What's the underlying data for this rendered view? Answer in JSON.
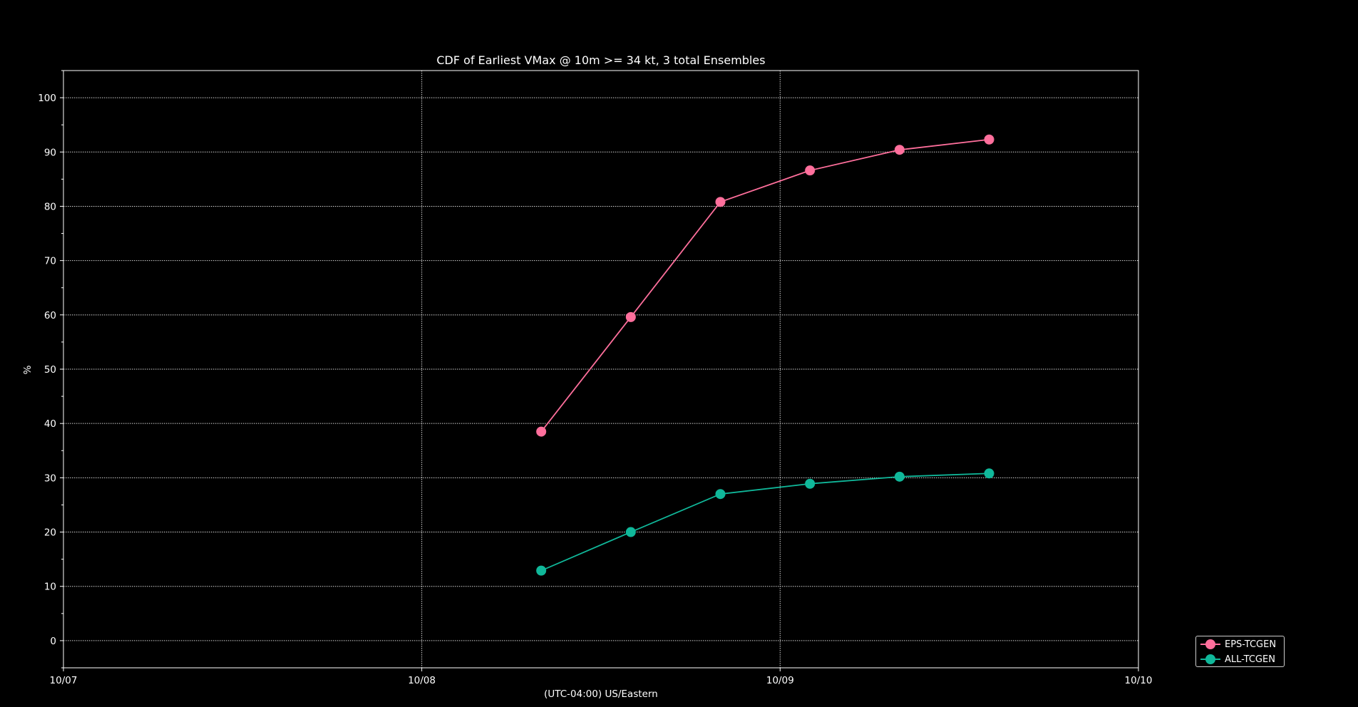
{
  "chart_data": {
    "type": "line",
    "title": "CDF of Earliest VMax @ 10m >= 34 kt, 3 total Ensembles",
    "xlabel": "(UTC-04:00) US/Eastern",
    "ylabel": "%",
    "xlim": [
      "10/07 00:00",
      "10/10 00:00"
    ],
    "ylim": [
      -5,
      105
    ],
    "x_ticks": [
      "10/07",
      "10/08",
      "10/09",
      "10/10"
    ],
    "y_ticks": [
      0,
      10,
      20,
      30,
      40,
      50,
      60,
      70,
      80,
      90,
      100
    ],
    "grid": true,
    "legend_position": "lower-right outside",
    "background": "#000000",
    "x": [
      "10/08 08:00",
      "10/08 14:00",
      "10/08 20:00",
      "10/09 02:00",
      "10/09 08:00",
      "10/09 14:00"
    ],
    "series": [
      {
        "name": "EPS-TCGEN",
        "color": "#ff6f9c",
        "values": [
          38.5,
          59.6,
          80.8,
          86.6,
          90.4,
          92.3
        ]
      },
      {
        "name": "ALL-TCGEN",
        "color": "#10b89a",
        "values": [
          12.9,
          20.0,
          27.0,
          28.9,
          30.2,
          30.8
        ]
      }
    ]
  }
}
